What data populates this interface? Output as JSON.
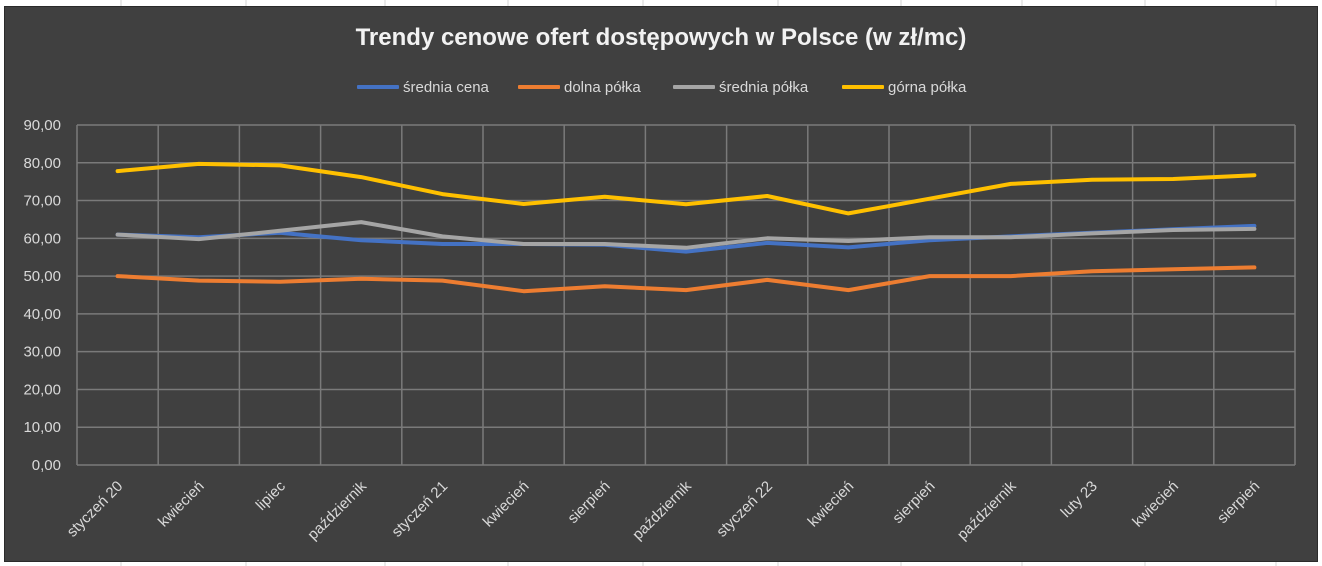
{
  "chart_data": {
    "type": "line",
    "title": "Trendy cenowe ofert dostępowych w Polsce (w zł/mc)",
    "xlabel": "",
    "ylabel": "",
    "ylim": [
      0,
      90
    ],
    "yticks": [
      "0,00",
      "10,00",
      "20,00",
      "30,00",
      "40,00",
      "50,00",
      "60,00",
      "70,00",
      "80,00",
      "90,00"
    ],
    "grid": true,
    "legend_position": "top",
    "categories": [
      "styczeń 20",
      "kwiecień",
      "lipiec",
      "październik",
      "styczeń 21",
      "kwiecień",
      "sierpień",
      "październik",
      "styczeń 22",
      "kwiecień",
      "sierpień",
      "październik",
      "luty 23",
      "kwiecień",
      "sierpień"
    ],
    "series": [
      {
        "name": "średnia cena",
        "color": "#4472c4",
        "values": [
          61.0,
          60.3,
          61.5,
          59.5,
          58.5,
          58.5,
          58.3,
          56.5,
          58.8,
          57.6,
          59.5,
          60.5,
          61.5,
          62.4,
          63.3
        ]
      },
      {
        "name": "dolna półka",
        "color": "#ed7d31",
        "values": [
          50.0,
          48.8,
          48.5,
          49.3,
          48.8,
          46.0,
          47.3,
          46.3,
          49.0,
          46.3,
          50.0,
          50.0,
          51.3,
          51.8,
          52.3
        ]
      },
      {
        "name": "średnia półka",
        "color": "#a5a5a5",
        "values": [
          61.0,
          59.8,
          62.0,
          64.3,
          60.5,
          58.5,
          58.5,
          57.5,
          60.0,
          59.3,
          60.3,
          60.3,
          61.3,
          62.2,
          62.5
        ]
      },
      {
        "name": "górna półka",
        "color": "#ffc000",
        "values": [
          77.8,
          79.7,
          79.3,
          76.2,
          71.7,
          69.1,
          71.0,
          69.0,
          71.2,
          66.6,
          70.5,
          74.4,
          75.5,
          75.7,
          76.7
        ]
      }
    ]
  }
}
